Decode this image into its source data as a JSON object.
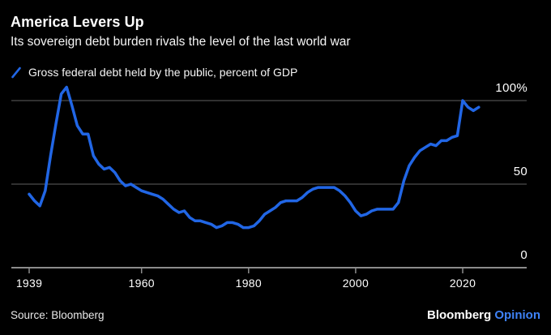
{
  "header": {
    "title": "America Levers Up",
    "subtitle": "Its sovereign debt burden rivals the level of the last world war"
  },
  "legend": {
    "label": "Gross federal debt held by the public, percent of GDP",
    "marker": "blue-slash",
    "marker_color": "#2166e5"
  },
  "chart_data": {
    "type": "line",
    "title": "America Levers Up",
    "subtitle": "Its sovereign debt burden rivals the level of the last world war",
    "xlabel": "",
    "ylabel": "percent of GDP",
    "grid": "horizontal",
    "legend_position": "top-left",
    "background": "#000000",
    "xlim": [
      1936,
      2032
    ],
    "ylim": [
      0,
      110
    ],
    "x_tick_labels": [
      "1939",
      "1960",
      "1980",
      "2000",
      "2020"
    ],
    "x_ticks": [
      1939,
      1960,
      1980,
      2000,
      2020
    ],
    "y_ticks": [
      {
        "value": 100,
        "label": "100%"
      },
      {
        "value": 50,
        "label": "50"
      },
      {
        "value": 0,
        "label": "0"
      }
    ],
    "series": [
      {
        "name": "Gross federal debt held by the public, percent of GDP",
        "color": "#2166e5",
        "x": [
          1939,
          1940,
          1941,
          1942,
          1943,
          1944,
          1945,
          1946,
          1947,
          1948,
          1949,
          1950,
          1951,
          1952,
          1953,
          1954,
          1955,
          1956,
          1957,
          1958,
          1959,
          1960,
          1961,
          1962,
          1963,
          1964,
          1965,
          1966,
          1967,
          1968,
          1969,
          1970,
          1971,
          1972,
          1973,
          1974,
          1975,
          1976,
          1977,
          1978,
          1979,
          1980,
          1981,
          1982,
          1983,
          1984,
          1985,
          1986,
          1987,
          1988,
          1989,
          1990,
          1991,
          1992,
          1993,
          1994,
          1995,
          1996,
          1997,
          1998,
          1999,
          2000,
          2001,
          2002,
          2003,
          2004,
          2005,
          2006,
          2007,
          2008,
          2009,
          2010,
          2011,
          2012,
          2013,
          2014,
          2015,
          2016,
          2017,
          2018,
          2019,
          2020,
          2021,
          2022,
          2023
        ],
        "values": [
          44,
          40,
          37,
          46,
          67,
          86,
          104,
          108,
          97,
          85,
          80,
          80,
          67,
          62,
          59,
          60,
          57,
          52,
          49,
          50,
          48,
          46,
          45,
          44,
          43,
          41,
          38,
          35,
          33,
          34,
          30,
          28,
          28,
          27,
          26,
          24,
          25,
          27,
          27,
          26,
          24,
          24,
          25,
          28,
          32,
          34,
          36,
          39,
          40,
          40,
          40,
          42,
          45,
          47,
          48,
          48,
          48,
          48,
          46,
          43,
          39,
          34,
          31,
          32,
          34,
          35,
          35,
          35,
          35,
          39,
          52,
          61,
          66,
          70,
          72,
          74,
          73,
          76,
          76,
          78,
          79,
          100,
          96,
          94,
          96
        ]
      }
    ]
  },
  "footer": {
    "source": "Source: Bloomberg",
    "brand": "Bloomberg",
    "brand_suffix": "Opinion",
    "brand_suffix_color": "#3e82f7"
  },
  "colors": {
    "line": "#2166e5",
    "gridline": "#5f5f5f",
    "axis": "#8c8c8c",
    "text": "#ffffff",
    "background": "#000000"
  }
}
